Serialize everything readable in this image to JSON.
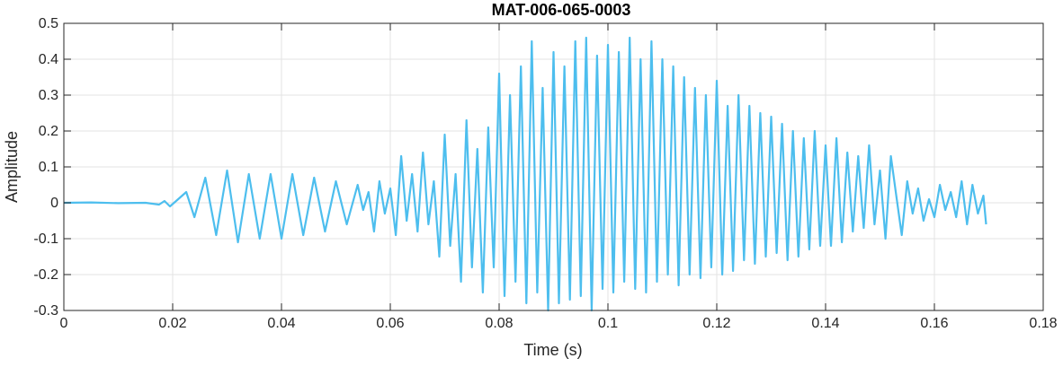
{
  "chart_data": {
    "type": "line",
    "title": "MAT-006-065-0003",
    "xlabel": "Time (s)",
    "ylabel": "Amplitude",
    "xlim": [
      0,
      0.18
    ],
    "ylim": [
      -0.3,
      0.5
    ],
    "grid": true,
    "x_ticks": [
      "0",
      "0.02",
      "0.04",
      "0.06",
      "0.08",
      "0.1",
      "0.12",
      "0.14",
      "0.16",
      "0.18"
    ],
    "y_ticks": [
      "-0.3",
      "-0.2",
      "-0.1",
      "0",
      "0.1",
      "0.2",
      "0.3",
      "0.4",
      "0.5"
    ],
    "series": [
      {
        "color": "#4DBEEE",
        "x": [
          0,
          0.005,
          0.01,
          0.015,
          0.0175,
          0.0185,
          0.0195,
          0.021,
          0.0225,
          0.024,
          0.026,
          0.028,
          0.03,
          0.032,
          0.034,
          0.036,
          0.038,
          0.04,
          0.042,
          0.044,
          0.046,
          0.048,
          0.05,
          0.052,
          0.054,
          0.055,
          0.056,
          0.057,
          0.058,
          0.059,
          0.06,
          0.061,
          0.062,
          0.063,
          0.064,
          0.065,
          0.066,
          0.067,
          0.068,
          0.069,
          0.07,
          0.071,
          0.072,
          0.073,
          0.074,
          0.075,
          0.076,
          0.077,
          0.078,
          0.079,
          0.08,
          0.081,
          0.082,
          0.083,
          0.084,
          0.085,
          0.086,
          0.087,
          0.088,
          0.089,
          0.09,
          0.091,
          0.092,
          0.093,
          0.094,
          0.095,
          0.096,
          0.097,
          0.098,
          0.099,
          0.1,
          0.101,
          0.102,
          0.103,
          0.104,
          0.105,
          0.106,
          0.107,
          0.108,
          0.109,
          0.11,
          0.111,
          0.112,
          0.113,
          0.114,
          0.115,
          0.116,
          0.117,
          0.118,
          0.119,
          0.12,
          0.121,
          0.122,
          0.123,
          0.124,
          0.125,
          0.126,
          0.127,
          0.128,
          0.129,
          0.13,
          0.131,
          0.132,
          0.133,
          0.134,
          0.135,
          0.136,
          0.137,
          0.138,
          0.139,
          0.14,
          0.141,
          0.142,
          0.143,
          0.144,
          0.145,
          0.146,
          0.147,
          0.148,
          0.149,
          0.15,
          0.151,
          0.152,
          0.153,
          0.154,
          0.155,
          0.156,
          0.157,
          0.158,
          0.159,
          0.16,
          0.161,
          0.162,
          0.163,
          0.164,
          0.165,
          0.166,
          0.167,
          0.168,
          0.169,
          0.1695
        ],
        "y": [
          0,
          0.001,
          -0.001,
          0,
          -0.005,
          0.005,
          -0.01,
          0.01,
          0.03,
          -0.04,
          0.07,
          -0.09,
          0.09,
          -0.11,
          0.08,
          -0.1,
          0.08,
          -0.1,
          0.08,
          -0.09,
          0.07,
          -0.08,
          0.06,
          -0.06,
          0.05,
          -0.02,
          0.03,
          -0.08,
          0.06,
          -0.03,
          0.04,
          -0.09,
          0.13,
          -0.05,
          0.08,
          -0.08,
          0.14,
          -0.06,
          0.06,
          -0.15,
          0.19,
          -0.12,
          0.08,
          -0.22,
          0.23,
          -0.18,
          0.15,
          -0.25,
          0.21,
          -0.18,
          0.36,
          -0.26,
          0.3,
          -0.22,
          0.38,
          -0.28,
          0.45,
          -0.25,
          0.32,
          -0.3,
          0.42,
          -0.28,
          0.38,
          -0.27,
          0.45,
          -0.26,
          0.46,
          -0.3,
          0.41,
          -0.24,
          0.44,
          -0.25,
          0.42,
          -0.22,
          0.46,
          -0.24,
          0.4,
          -0.25,
          0.45,
          -0.22,
          0.4,
          -0.2,
          0.38,
          -0.23,
          0.35,
          -0.2,
          0.32,
          -0.21,
          0.3,
          -0.18,
          0.34,
          -0.2,
          0.27,
          -0.19,
          0.3,
          -0.16,
          0.27,
          -0.17,
          0.25,
          -0.15,
          0.24,
          -0.14,
          0.22,
          -0.16,
          0.2,
          -0.15,
          0.18,
          -0.13,
          0.2,
          -0.12,
          0.16,
          -0.12,
          0.18,
          -0.11,
          0.14,
          -0.08,
          0.13,
          -0.07,
          0.16,
          -0.06,
          0.09,
          -0.1,
          0.13,
          0.02,
          -0.09,
          0.06,
          -0.03,
          0.04,
          -0.05,
          0.01,
          -0.04,
          0.05,
          -0.02,
          0.03,
          -0.04,
          0.06,
          -0.06,
          0.05,
          -0.03,
          0.02,
          -0.06
        ]
      }
    ]
  }
}
